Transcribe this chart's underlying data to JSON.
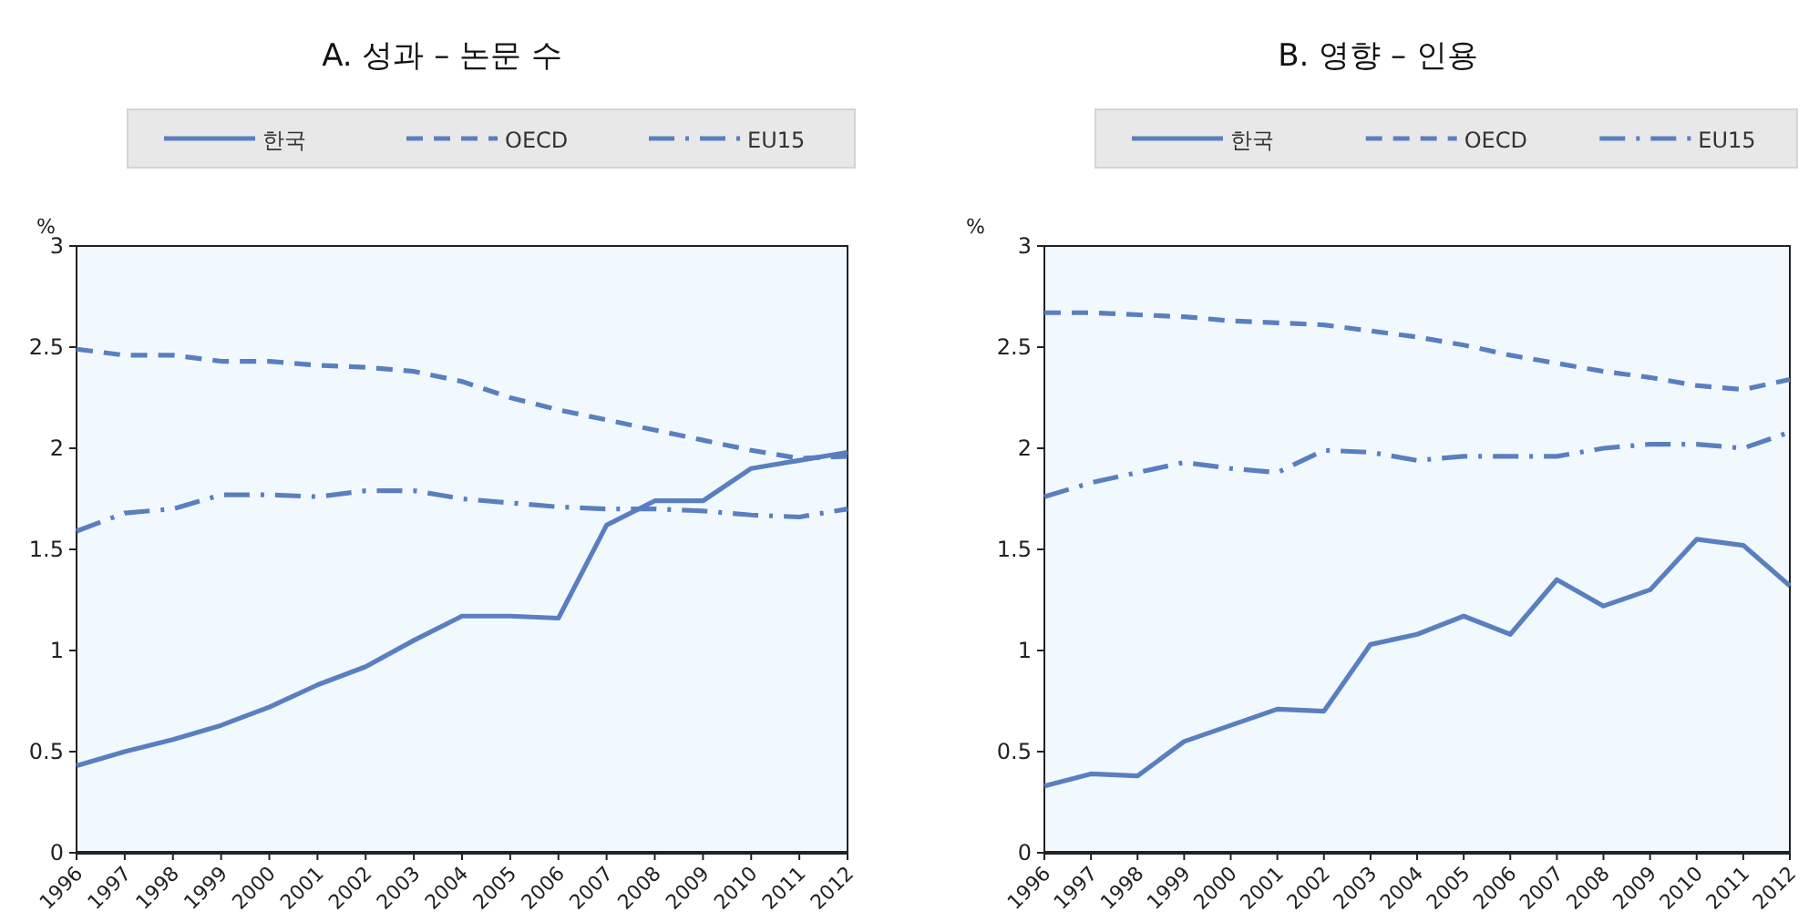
{
  "chart_data": [
    {
      "type": "line",
      "title": "A. 성과 – 논문 수",
      "ylabel": "%",
      "legend": "top",
      "categories": [
        "1996",
        "1997",
        "1998",
        "1999",
        "2000",
        "2001",
        "2002",
        "2003",
        "2004",
        "2005",
        "2006",
        "2007",
        "2008",
        "2009",
        "2010",
        "2011",
        "2012"
      ],
      "ylim": [
        0,
        3
      ],
      "yticks": [
        0,
        0.5,
        1,
        1.5,
        2,
        2.5,
        3
      ],
      "series": [
        {
          "name": "한국",
          "color": "#5a7fc0",
          "line_style": "solid",
          "values": [
            0.43,
            0.5,
            0.56,
            0.63,
            0.72,
            0.83,
            0.92,
            1.05,
            1.17,
            1.17,
            1.16,
            1.62,
            1.74,
            1.74,
            1.9,
            1.94,
            1.98
          ]
        },
        {
          "name": "OECD",
          "color": "#5a7fc0",
          "line_style": "dashed",
          "values": [
            2.49,
            2.46,
            2.46,
            2.43,
            2.43,
            2.41,
            2.4,
            2.38,
            2.33,
            2.25,
            2.19,
            2.14,
            2.09,
            2.04,
            1.99,
            1.95,
            1.96
          ]
        },
        {
          "name": "EU15",
          "color": "#5a7fc0",
          "line_style": "dashdot",
          "values": [
            1.59,
            1.68,
            1.7,
            1.77,
            1.77,
            1.76,
            1.79,
            1.79,
            1.75,
            1.73,
            1.71,
            1.7,
            1.7,
            1.69,
            1.67,
            1.66,
            1.7
          ]
        }
      ]
    },
    {
      "type": "line",
      "title": "B. 영향 – 인용",
      "ylabel": "%",
      "legend": "top",
      "categories": [
        "1996",
        "1997",
        "1998",
        "1999",
        "2000",
        "2001",
        "2002",
        "2003",
        "2004",
        "2005",
        "2006",
        "2007",
        "2008",
        "2009",
        "2010",
        "2011",
        "2012"
      ],
      "ylim": [
        0,
        3
      ],
      "yticks": [
        0,
        0.5,
        1,
        1.5,
        2,
        2.5,
        3
      ],
      "series": [
        {
          "name": "한국",
          "color": "#5a7fc0",
          "line_style": "solid",
          "values": [
            0.33,
            0.39,
            0.38,
            0.55,
            0.63,
            0.71,
            0.7,
            1.03,
            1.08,
            1.17,
            1.08,
            1.35,
            1.22,
            1.3,
            1.55,
            1.52,
            1.32
          ]
        },
        {
          "name": "OECD",
          "color": "#5a7fc0",
          "line_style": "dashed",
          "values": [
            2.67,
            2.67,
            2.66,
            2.65,
            2.63,
            2.62,
            2.61,
            2.58,
            2.55,
            2.51,
            2.46,
            2.42,
            2.38,
            2.35,
            2.31,
            2.29,
            2.34
          ]
        },
        {
          "name": "EU15",
          "color": "#5a7fc0",
          "line_style": "dashdot",
          "values": [
            1.76,
            1.83,
            1.88,
            1.93,
            1.9,
            1.88,
            1.99,
            1.98,
            1.94,
            1.96,
            1.96,
            1.96,
            2.0,
            2.02,
            2.02,
            2.0,
            2.08
          ]
        }
      ]
    }
  ]
}
